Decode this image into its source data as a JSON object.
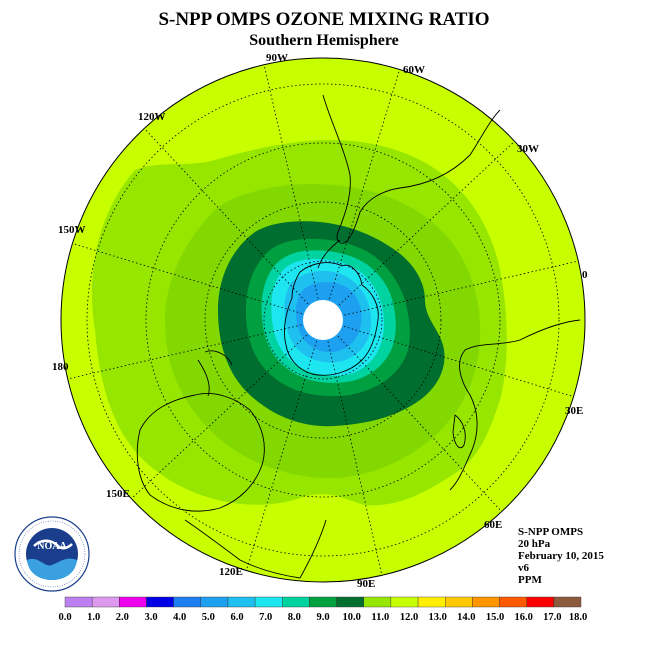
{
  "header": {
    "title": "S-NPP OMPS OZONE MIXING RATIO",
    "subtitle": "Southern Hemisphere"
  },
  "longitude_labels": [
    "90W",
    "60W",
    "120W",
    "30W",
    "150W",
    "0",
    "180",
    "30E",
    "150E",
    "60E",
    "120E",
    "90E"
  ],
  "info": {
    "instrument": "S-NPP OMPS",
    "level": "20 hPa",
    "date": "February 10, 2015",
    "version": "v6",
    "units": "PPM"
  },
  "logo": {
    "text": "NOAA",
    "ring_text": "NATIONAL OCEANIC AND ATMOSPHERIC ADMINISTRATION · U.S. DEPARTMENT OF COMMERCE"
  },
  "colorbar": {
    "labels": [
      "0.0",
      "1.0",
      "2.0",
      "3.0",
      "4.0",
      "5.0",
      "6.0",
      "7.0",
      "8.0",
      "9.0",
      "10.0",
      "11.0",
      "12.0",
      "13.0",
      "14.0",
      "15.0",
      "16.0",
      "17.0",
      "18.0"
    ],
    "colors": [
      "#bb7ff0",
      "#dd99ee",
      "#ee00ee",
      "#0000e6",
      "#1e80f0",
      "#1ea0f0",
      "#1ec0f0",
      "#1ee6f0",
      "#00d2a0",
      "#00a040",
      "#006e2e",
      "#96e600",
      "#c8ff00",
      "#ffee00",
      "#ffc800",
      "#ff9600",
      "#ff5a00",
      "#ff0000",
      "#8c5a3c"
    ]
  },
  "map_colors": {
    "background": "#c8ff00",
    "band_11_12": "#96e600",
    "band_10_11": "#7ad000",
    "band_9_10": "#006e2e",
    "band_8_9": "#00a040",
    "band_7_8": "#00d2a0",
    "band_6_7": "#1ee6f0",
    "band_5_6": "#1ec0f0",
    "band_4_5": "#1ea0f0",
    "pole_gap": "#ffffff"
  }
}
